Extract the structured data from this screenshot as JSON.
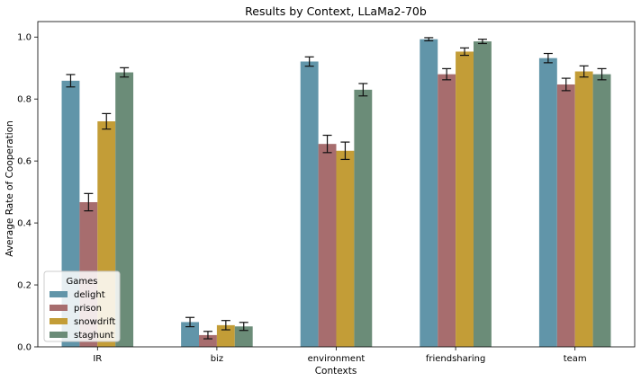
{
  "chart_data": {
    "type": "bar",
    "title": "Results by Context, LLaMa2-70b",
    "xlabel": "Contexts",
    "ylabel": "Average Rate of Cooperation",
    "ylim": [
      0,
      1.05
    ],
    "yticks": [
      "0.0",
      "0.2",
      "0.4",
      "0.6",
      "0.8",
      "1.0"
    ],
    "categories": [
      "IR",
      "biz",
      "environment",
      "friendsharing",
      "team"
    ],
    "legend": {
      "title": "Games",
      "placement": "lower-left"
    },
    "series": [
      {
        "name": "delight",
        "color": "#6195a9",
        "values": [
          0.859,
          0.08,
          0.921,
          0.993,
          0.932
        ],
        "errors": [
          0.02,
          0.015,
          0.015,
          0.005,
          0.015
        ]
      },
      {
        "name": "prison",
        "color": "#a76d6e",
        "values": [
          0.467,
          0.038,
          0.655,
          0.88,
          0.847
        ],
        "errors": [
          0.028,
          0.012,
          0.028,
          0.018,
          0.02
        ]
      },
      {
        "name": "snowdrift",
        "color": "#c39d37",
        "values": [
          0.728,
          0.07,
          0.633,
          0.953,
          0.889
        ],
        "errors": [
          0.025,
          0.015,
          0.028,
          0.012,
          0.018
        ]
      },
      {
        "name": "staghunt",
        "color": "#6b8c78",
        "values": [
          0.886,
          0.066,
          0.83,
          0.986,
          0.88
        ],
        "errors": [
          0.015,
          0.013,
          0.02,
          0.007,
          0.018
        ]
      }
    ]
  }
}
